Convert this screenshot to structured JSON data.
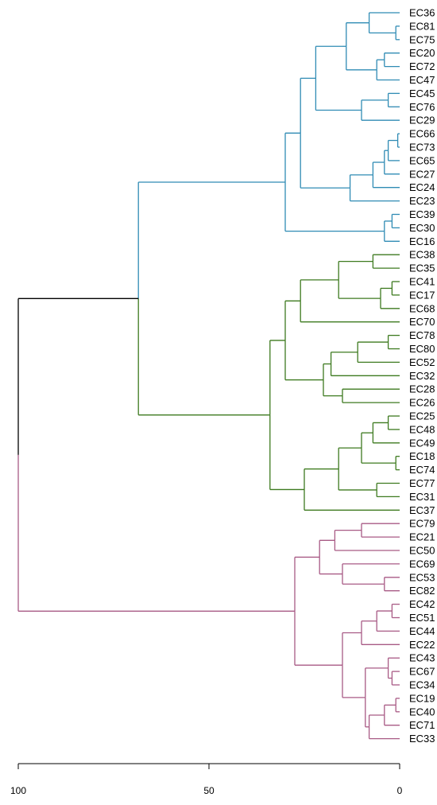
{
  "chart_data": {
    "type": "dendrogram",
    "title": "",
    "xlabel": "",
    "ylabel": "",
    "axis": {
      "ticks": [
        100,
        50,
        0
      ],
      "range": [
        100,
        0
      ]
    },
    "colors": {
      "blue": "#2f8bb4",
      "green": "#3d7a1f",
      "pink": "#a85a85",
      "root": "#000000"
    },
    "leaves": [
      "EC36",
      "EC81",
      "EC75",
      "EC20",
      "EC72",
      "EC47",
      "EC45",
      "EC76",
      "EC29",
      "EC66",
      "EC73",
      "EC65",
      "EC27",
      "EC24",
      "EC23",
      "EC39",
      "EC30",
      "EC16",
      "EC38",
      "EC35",
      "EC41",
      "EC17",
      "EC68",
      "EC70",
      "EC78",
      "EC80",
      "EC52",
      "EC32",
      "EC28",
      "EC26",
      "EC25",
      "EC48",
      "EC49",
      "EC18",
      "EC74",
      "EC77",
      "EC31",
      "EC37",
      "EC79",
      "EC21",
      "EC50",
      "EC69",
      "EC53",
      "EC82",
      "EC42",
      "EC51",
      "EC44",
      "EC22",
      "EC43",
      "EC67",
      "EC34",
      "EC19",
      "EC40",
      "EC71",
      "EC33"
    ],
    "tree": {
      "h": 100,
      "c": [
        {
          "h": 68.5,
          "c": [
            {
              "h": 30,
              "color": "blue",
              "c": [
                {
                  "h": 26,
                  "color": "blue",
                  "c": [
                    {
                      "h": 22,
                      "color": "blue",
                      "c": [
                        {
                          "h": 15,
                          "color": "blue",
                          "c": [
                            {
                              "h": 14,
                              "color": "blue",
                              "c": [
                                {
                                  "h": 8,
                                  "color": "blue",
                                  "c": [
                                    {
                                      "leaf": "EC36"
                                    },
                                    {
                                      "h": 1,
                                      "color": "blue",
                                      "c": [
                                        {
                                          "leaf": "EC81"
                                        },
                                        {
                                          "leaf": "EC75"
                                        }
                                      ]
                                    }
                                  ]
                                },
                                {
                                  "h": 6,
                                  "color": "blue",
                                  "c": [
                                    {
                                      "h": 4,
                                      "color": "blue",
                                      "c": [
                                        {
                                          "leaf": "EC20"
                                        },
                                        {
                                          "leaf": "EC72"
                                        }
                                      ]
                                    },
                                    {
                                      "leaf": "EC47"
                                    }
                                  ]
                                }
                              ]
                            }
                          ]
                        },
                        {
                          "h": 10,
                          "color": "blue",
                          "c": [
                            {
                              "h": 3,
                              "color": "blue",
                              "c": [
                                {
                                  "leaf": "EC45"
                                },
                                {
                                  "leaf": "EC76"
                                }
                              ]
                            },
                            {
                              "leaf": "EC29"
                            }
                          ]
                        }
                      ]
                    },
                    {
                      "h": 13,
                      "color": "blue",
                      "c": [
                        {
                          "h": 7,
                          "color": "blue",
                          "c": [
                            {
                              "h": 4,
                              "color": "blue",
                              "c": [
                                {
                                  "h": 3,
                                  "color": "blue",
                                  "c": [
                                    {
                                      "h": 0.5,
                                      "color": "blue",
                                      "c": [
                                        {
                                          "leaf": "EC66"
                                        },
                                        {
                                          "leaf": "EC73"
                                        }
                                      ]
                                    },
                                    {
                                      "leaf": "EC65"
                                    }
                                  ]
                                },
                                {
                                  "leaf": "EC27"
                                }
                              ]
                            },
                            {
                              "leaf": "EC24"
                            }
                          ]
                        },
                        {
                          "leaf": "EC23"
                        }
                      ]
                    }
                  ]
                },
                {
                  "h": 4,
                  "color": "blue",
                  "c": [
                    {
                      "h": 2,
                      "color": "blue",
                      "c": [
                        {
                          "leaf": "EC39"
                        },
                        {
                          "leaf": "EC30"
                        }
                      ]
                    },
                    {
                      "leaf": "EC16"
                    }
                  ]
                }
              ]
            },
            {
              "h": 34,
              "color": "green",
              "c": [
                {
                  "h": 30,
                  "color": "green",
                  "c": [
                    {
                      "h": 26,
                      "color": "green",
                      "c": [
                        {
                          "h": 16,
                          "color": "green",
                          "c": [
                            {
                              "h": 7,
                              "color": "green",
                              "c": [
                                {
                                  "leaf": "EC38"
                                },
                                {
                                  "leaf": "EC35"
                                }
                              ]
                            },
                            {
                              "h": 5,
                              "color": "green",
                              "c": [
                                {
                                  "h": 2,
                                  "color": "green",
                                  "c": [
                                    {
                                      "leaf": "EC41"
                                    },
                                    {
                                      "leaf": "EC17"
                                    }
                                  ]
                                },
                                {
                                  "leaf": "EC68"
                                }
                              ]
                            }
                          ]
                        },
                        {
                          "leaf": "EC70"
                        }
                      ]
                    },
                    {
                      "h": 20,
                      "color": "green",
                      "c": [
                        {
                          "h": 18,
                          "color": "green",
                          "c": [
                            {
                              "h": 11,
                              "color": "green",
                              "c": [
                                {
                                  "h": 3,
                                  "color": "green",
                                  "c": [
                                    {
                                      "leaf": "EC78"
                                    },
                                    {
                                      "leaf": "EC80"
                                    }
                                  ]
                                },
                                {
                                  "leaf": "EC52"
                                }
                              ]
                            },
                            {
                              "leaf": "EC32"
                            }
                          ]
                        },
                        {
                          "h": 15,
                          "color": "green",
                          "c": [
                            {
                              "leaf": "EC28"
                            },
                            {
                              "leaf": "EC26"
                            }
                          ]
                        }
                      ]
                    }
                  ]
                },
                {
                  "h": 25,
                  "color": "green",
                  "c": [
                    {
                      "h": 16,
                      "color": "green",
                      "c": [
                        {
                          "h": 10,
                          "color": "green",
                          "c": [
                            {
                              "h": 7,
                              "color": "green",
                              "c": [
                                {
                                  "h": 3,
                                  "color": "green",
                                  "c": [
                                    {
                                      "leaf": "EC25"
                                    },
                                    {
                                      "leaf": "EC48"
                                    }
                                  ]
                                },
                                {
                                  "leaf": "EC49"
                                }
                              ]
                            },
                            {
                              "h": 1,
                              "color": "green",
                              "c": [
                                {
                                  "leaf": "EC18"
                                },
                                {
                                  "leaf": "EC74"
                                }
                              ]
                            }
                          ]
                        },
                        {
                          "h": 6,
                          "color": "green",
                          "c": [
                            {
                              "leaf": "EC77"
                            },
                            {
                              "leaf": "EC31"
                            }
                          ]
                        }
                      ]
                    },
                    {
                      "leaf": "EC37"
                    }
                  ]
                }
              ]
            }
          ]
        },
        {
          "h": 27.5,
          "color": "pink",
          "c": [
            {
              "h": 21,
              "color": "pink",
              "c": [
                {
                  "h": 17,
                  "color": "pink",
                  "c": [
                    {
                      "h": 10,
                      "color": "pink",
                      "c": [
                        {
                          "leaf": "EC79"
                        },
                        {
                          "leaf": "EC21"
                        }
                      ]
                    },
                    {
                      "leaf": "EC50"
                    }
                  ]
                },
                {
                  "h": 15,
                  "color": "pink",
                  "c": [
                    {
                      "leaf": "EC69"
                    },
                    {
                      "h": 4,
                      "color": "pink",
                      "c": [
                        {
                          "leaf": "EC53"
                        },
                        {
                          "leaf": "EC82"
                        }
                      ]
                    }
                  ]
                }
              ]
            },
            {
              "h": 15,
              "color": "pink",
              "c": [
                {
                  "h": 10,
                  "color": "pink",
                  "c": [
                    {
                      "h": 6,
                      "color": "pink",
                      "c": [
                        {
                          "h": 2,
                          "color": "pink",
                          "c": [
                            {
                              "leaf": "EC42"
                            },
                            {
                              "leaf": "EC51"
                            }
                          ]
                        },
                        {
                          "leaf": "EC44"
                        }
                      ]
                    },
                    {
                      "leaf": "EC22"
                    }
                  ]
                },
                {
                  "h": 9,
                  "color": "pink",
                  "c": [
                    {
                      "h": 3,
                      "color": "pink",
                      "c": [
                        {
                          "leaf": "EC43"
                        },
                        {
                          "h": 2,
                          "color": "pink",
                          "c": [
                            {
                              "leaf": "EC67"
                            },
                            {
                              "leaf": "EC34"
                            }
                          ]
                        }
                      ]
                    },
                    {
                      "h": 8,
                      "color": "pink",
                      "c": [
                        {
                          "h": 4,
                          "color": "pink",
                          "c": [
                            {
                              "h": 1,
                              "color": "pink",
                              "c": [
                                {
                                  "leaf": "EC19"
                                },
                                {
                                  "leaf": "EC40"
                                }
                              ]
                            },
                            {
                              "leaf": "EC71"
                            }
                          ]
                        },
                        {
                          "leaf": "EC33"
                        }
                      ]
                    }
                  ]
                }
              ]
            }
          ]
        }
      ]
    }
  }
}
